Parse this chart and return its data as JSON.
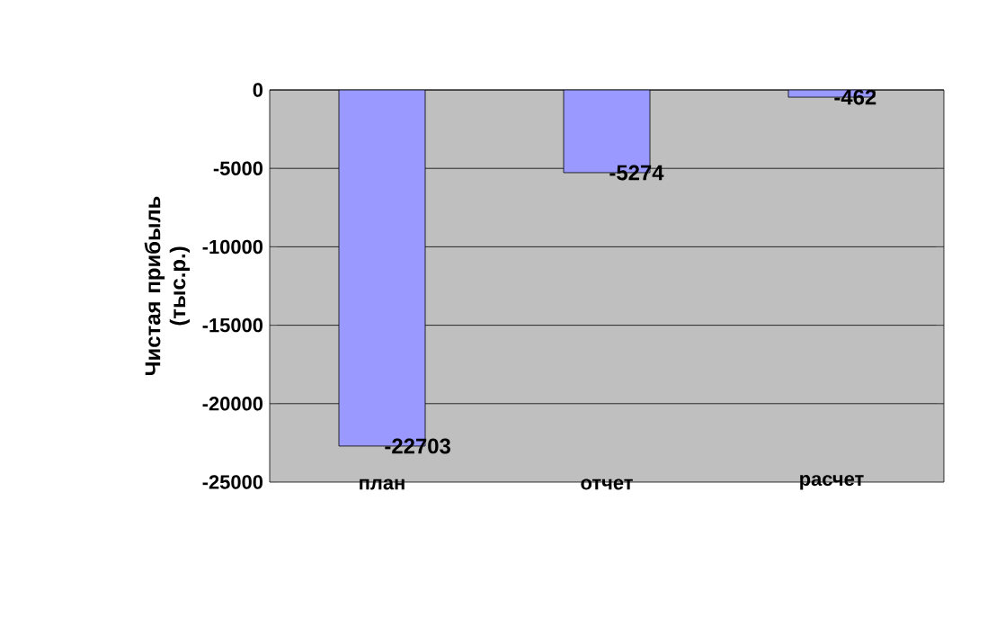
{
  "chart_data": {
    "type": "bar",
    "ylabel": "Чистая прибыль (тыс.р.)",
    "categories": [
      "план",
      "отчет",
      "расчет"
    ],
    "values": [
      -22703,
      -5274,
      -462
    ],
    "color": "#9999ff",
    "ylim": [
      -25000,
      0
    ],
    "yticks": [
      -25000,
      -20000,
      -15000,
      -10000,
      -5000,
      0
    ],
    "grid": "y",
    "data_labels": true
  }
}
